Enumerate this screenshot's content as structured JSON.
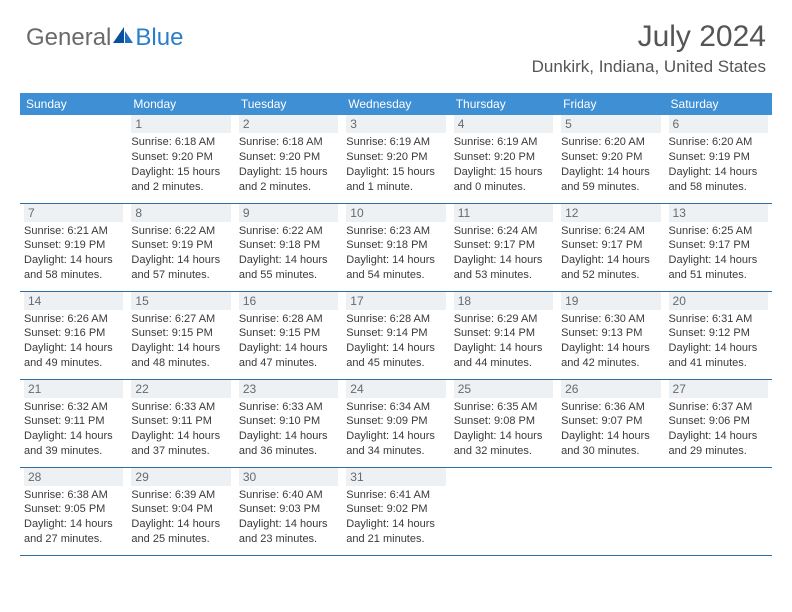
{
  "brand": {
    "part1": "General",
    "part2": "Blue"
  },
  "title": "July 2024",
  "location": "Dunkirk, Indiana, United States",
  "colors": {
    "header_bg": "#3e8fd4",
    "header_text": "#ffffff",
    "daynum_bg": "#eef1f3",
    "daynum_text": "#646b70",
    "row_border": "#2f6da5",
    "brand_gray": "#6a6a6a",
    "brand_blue": "#2a7fc9"
  },
  "dayHeaders": [
    "Sunday",
    "Monday",
    "Tuesday",
    "Wednesday",
    "Thursday",
    "Friday",
    "Saturday"
  ],
  "weeks": [
    [
      null,
      {
        "n": "1",
        "sr": "Sunrise: 6:18 AM",
        "ss": "Sunset: 9:20 PM",
        "d1": "Daylight: 15 hours",
        "d2": "and 2 minutes."
      },
      {
        "n": "2",
        "sr": "Sunrise: 6:18 AM",
        "ss": "Sunset: 9:20 PM",
        "d1": "Daylight: 15 hours",
        "d2": "and 2 minutes."
      },
      {
        "n": "3",
        "sr": "Sunrise: 6:19 AM",
        "ss": "Sunset: 9:20 PM",
        "d1": "Daylight: 15 hours",
        "d2": "and 1 minute."
      },
      {
        "n": "4",
        "sr": "Sunrise: 6:19 AM",
        "ss": "Sunset: 9:20 PM",
        "d1": "Daylight: 15 hours",
        "d2": "and 0 minutes."
      },
      {
        "n": "5",
        "sr": "Sunrise: 6:20 AM",
        "ss": "Sunset: 9:20 PM",
        "d1": "Daylight: 14 hours",
        "d2": "and 59 minutes."
      },
      {
        "n": "6",
        "sr": "Sunrise: 6:20 AM",
        "ss": "Sunset: 9:19 PM",
        "d1": "Daylight: 14 hours",
        "d2": "and 58 minutes."
      }
    ],
    [
      {
        "n": "7",
        "sr": "Sunrise: 6:21 AM",
        "ss": "Sunset: 9:19 PM",
        "d1": "Daylight: 14 hours",
        "d2": "and 58 minutes."
      },
      {
        "n": "8",
        "sr": "Sunrise: 6:22 AM",
        "ss": "Sunset: 9:19 PM",
        "d1": "Daylight: 14 hours",
        "d2": "and 57 minutes."
      },
      {
        "n": "9",
        "sr": "Sunrise: 6:22 AM",
        "ss": "Sunset: 9:18 PM",
        "d1": "Daylight: 14 hours",
        "d2": "and 55 minutes."
      },
      {
        "n": "10",
        "sr": "Sunrise: 6:23 AM",
        "ss": "Sunset: 9:18 PM",
        "d1": "Daylight: 14 hours",
        "d2": "and 54 minutes."
      },
      {
        "n": "11",
        "sr": "Sunrise: 6:24 AM",
        "ss": "Sunset: 9:17 PM",
        "d1": "Daylight: 14 hours",
        "d2": "and 53 minutes."
      },
      {
        "n": "12",
        "sr": "Sunrise: 6:24 AM",
        "ss": "Sunset: 9:17 PM",
        "d1": "Daylight: 14 hours",
        "d2": "and 52 minutes."
      },
      {
        "n": "13",
        "sr": "Sunrise: 6:25 AM",
        "ss": "Sunset: 9:17 PM",
        "d1": "Daylight: 14 hours",
        "d2": "and 51 minutes."
      }
    ],
    [
      {
        "n": "14",
        "sr": "Sunrise: 6:26 AM",
        "ss": "Sunset: 9:16 PM",
        "d1": "Daylight: 14 hours",
        "d2": "and 49 minutes."
      },
      {
        "n": "15",
        "sr": "Sunrise: 6:27 AM",
        "ss": "Sunset: 9:15 PM",
        "d1": "Daylight: 14 hours",
        "d2": "and 48 minutes."
      },
      {
        "n": "16",
        "sr": "Sunrise: 6:28 AM",
        "ss": "Sunset: 9:15 PM",
        "d1": "Daylight: 14 hours",
        "d2": "and 47 minutes."
      },
      {
        "n": "17",
        "sr": "Sunrise: 6:28 AM",
        "ss": "Sunset: 9:14 PM",
        "d1": "Daylight: 14 hours",
        "d2": "and 45 minutes."
      },
      {
        "n": "18",
        "sr": "Sunrise: 6:29 AM",
        "ss": "Sunset: 9:14 PM",
        "d1": "Daylight: 14 hours",
        "d2": "and 44 minutes."
      },
      {
        "n": "19",
        "sr": "Sunrise: 6:30 AM",
        "ss": "Sunset: 9:13 PM",
        "d1": "Daylight: 14 hours",
        "d2": "and 42 minutes."
      },
      {
        "n": "20",
        "sr": "Sunrise: 6:31 AM",
        "ss": "Sunset: 9:12 PM",
        "d1": "Daylight: 14 hours",
        "d2": "and 41 minutes."
      }
    ],
    [
      {
        "n": "21",
        "sr": "Sunrise: 6:32 AM",
        "ss": "Sunset: 9:11 PM",
        "d1": "Daylight: 14 hours",
        "d2": "and 39 minutes."
      },
      {
        "n": "22",
        "sr": "Sunrise: 6:33 AM",
        "ss": "Sunset: 9:11 PM",
        "d1": "Daylight: 14 hours",
        "d2": "and 37 minutes."
      },
      {
        "n": "23",
        "sr": "Sunrise: 6:33 AM",
        "ss": "Sunset: 9:10 PM",
        "d1": "Daylight: 14 hours",
        "d2": "and 36 minutes."
      },
      {
        "n": "24",
        "sr": "Sunrise: 6:34 AM",
        "ss": "Sunset: 9:09 PM",
        "d1": "Daylight: 14 hours",
        "d2": "and 34 minutes."
      },
      {
        "n": "25",
        "sr": "Sunrise: 6:35 AM",
        "ss": "Sunset: 9:08 PM",
        "d1": "Daylight: 14 hours",
        "d2": "and 32 minutes."
      },
      {
        "n": "26",
        "sr": "Sunrise: 6:36 AM",
        "ss": "Sunset: 9:07 PM",
        "d1": "Daylight: 14 hours",
        "d2": "and 30 minutes."
      },
      {
        "n": "27",
        "sr": "Sunrise: 6:37 AM",
        "ss": "Sunset: 9:06 PM",
        "d1": "Daylight: 14 hours",
        "d2": "and 29 minutes."
      }
    ],
    [
      {
        "n": "28",
        "sr": "Sunrise: 6:38 AM",
        "ss": "Sunset: 9:05 PM",
        "d1": "Daylight: 14 hours",
        "d2": "and 27 minutes."
      },
      {
        "n": "29",
        "sr": "Sunrise: 6:39 AM",
        "ss": "Sunset: 9:04 PM",
        "d1": "Daylight: 14 hours",
        "d2": "and 25 minutes."
      },
      {
        "n": "30",
        "sr": "Sunrise: 6:40 AM",
        "ss": "Sunset: 9:03 PM",
        "d1": "Daylight: 14 hours",
        "d2": "and 23 minutes."
      },
      {
        "n": "31",
        "sr": "Sunrise: 6:41 AM",
        "ss": "Sunset: 9:02 PM",
        "d1": "Daylight: 14 hours",
        "d2": "and 21 minutes."
      },
      null,
      null,
      null
    ]
  ]
}
